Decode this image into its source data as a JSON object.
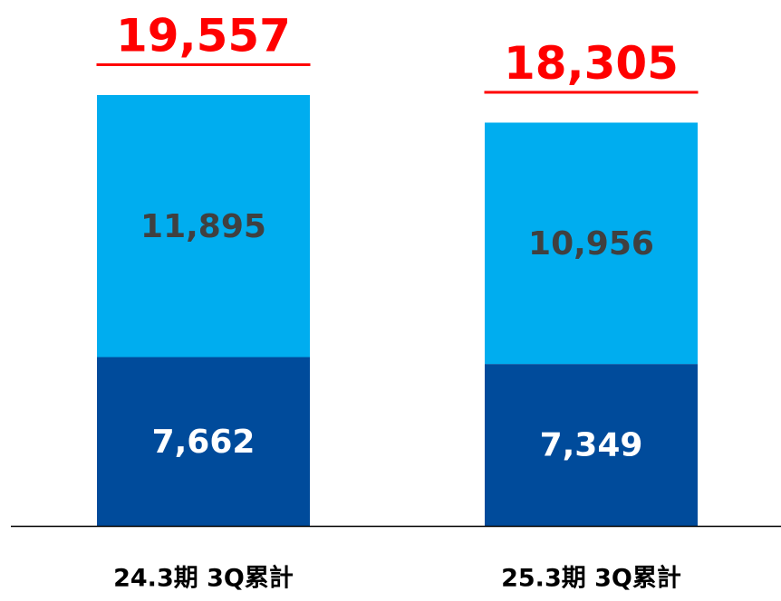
{
  "chart_data": {
    "type": "stacked_bar",
    "categories": [
      "24.3期 3Q累計",
      "25.3期 3Q累計"
    ],
    "series": [
      {
        "color": "#004b9b",
        "label_color": "#ffffff",
        "values": [
          7662,
          7349
        ],
        "value_labels": [
          "7,662",
          "7,349"
        ]
      },
      {
        "color": "#00adef",
        "label_color": "#404040",
        "values": [
          11895,
          10956
        ],
        "value_labels": [
          "11,895",
          "10,956"
        ]
      }
    ],
    "totals": [
      19557,
      18305
    ],
    "total_labels": [
      "19,557",
      "18,305"
    ],
    "total_color": "#ff0000"
  }
}
